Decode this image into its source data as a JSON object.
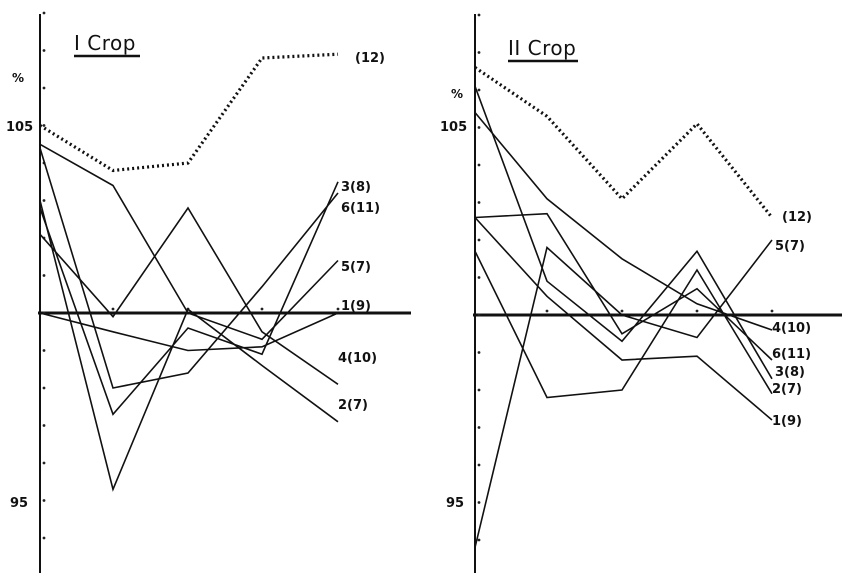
{
  "chart_data": [
    {
      "type": "line",
      "title": "I Crop",
      "y_unit": "%",
      "ylim": [
        93.2,
        111.7
      ],
      "baseline": 100,
      "y_ticks": [
        {
          "value": 105,
          "label": "105"
        },
        {
          "value": 95,
          "label": "95"
        }
      ],
      "x": [
        1,
        2,
        3,
        4,
        5
      ],
      "series": [
        {
          "name": "(12)",
          "style": "dotted",
          "values": [
            105.0,
            103.8,
            104.0,
            106.8,
            106.9
          ]
        },
        {
          "name": "3(8)",
          "values": [
            102.8,
            97.3,
            99.6,
            98.9,
            103.5
          ]
        },
        {
          "name": "6(11)",
          "values": [
            104.4,
            98.0,
            98.4,
            100.7,
            103.2
          ]
        },
        {
          "name": "5(7)",
          "values": [
            104.5,
            103.4,
            100.0,
            99.3,
            101.4
          ]
        },
        {
          "name": "1(9)",
          "values": [
            100.0,
            99.5,
            99.0,
            99.1,
            100.0
          ]
        },
        {
          "name": "4(10)",
          "values": [
            102.1,
            99.9,
            102.8,
            99.5,
            98.1
          ]
        },
        {
          "name": "2(7)",
          "values": [
            103.0,
            95.3,
            100.1,
            98.6,
            97.1
          ]
        }
      ]
    },
    {
      "type": "line",
      "title": "II Crop",
      "y_unit": "%",
      "ylim": [
        93.2,
        111.7
      ],
      "baseline": 100,
      "y_ticks": [
        {
          "value": 105,
          "label": "105"
        },
        {
          "value": 95,
          "label": "95"
        }
      ],
      "x": [
        1,
        2,
        3,
        4,
        5
      ],
      "series": [
        {
          "name": "(12)",
          "style": "dotted",
          "values": [
            106.6,
            105.3,
            103.1,
            105.1,
            102.6
          ]
        },
        {
          "name": "5(7)",
          "values": [
            93.8,
            101.8,
            100.0,
            99.4,
            102.0
          ]
        },
        {
          "name": "4(10)",
          "values": [
            105.4,
            103.1,
            101.5,
            100.3,
            99.6
          ]
        },
        {
          "name": "6(11)",
          "values": [
            102.6,
            102.7,
            99.5,
            100.7,
            98.8
          ]
        },
        {
          "name": "3(8)",
          "values": [
            106.1,
            100.9,
            99.3,
            101.7,
            98.3
          ]
        },
        {
          "name": "2(7)",
          "values": [
            101.7,
            97.8,
            98.0,
            101.2,
            97.9
          ]
        },
        {
          "name": "1(9)",
          "values": [
            102.6,
            100.5,
            98.8,
            98.9,
            97.2
          ]
        }
      ]
    }
  ]
}
